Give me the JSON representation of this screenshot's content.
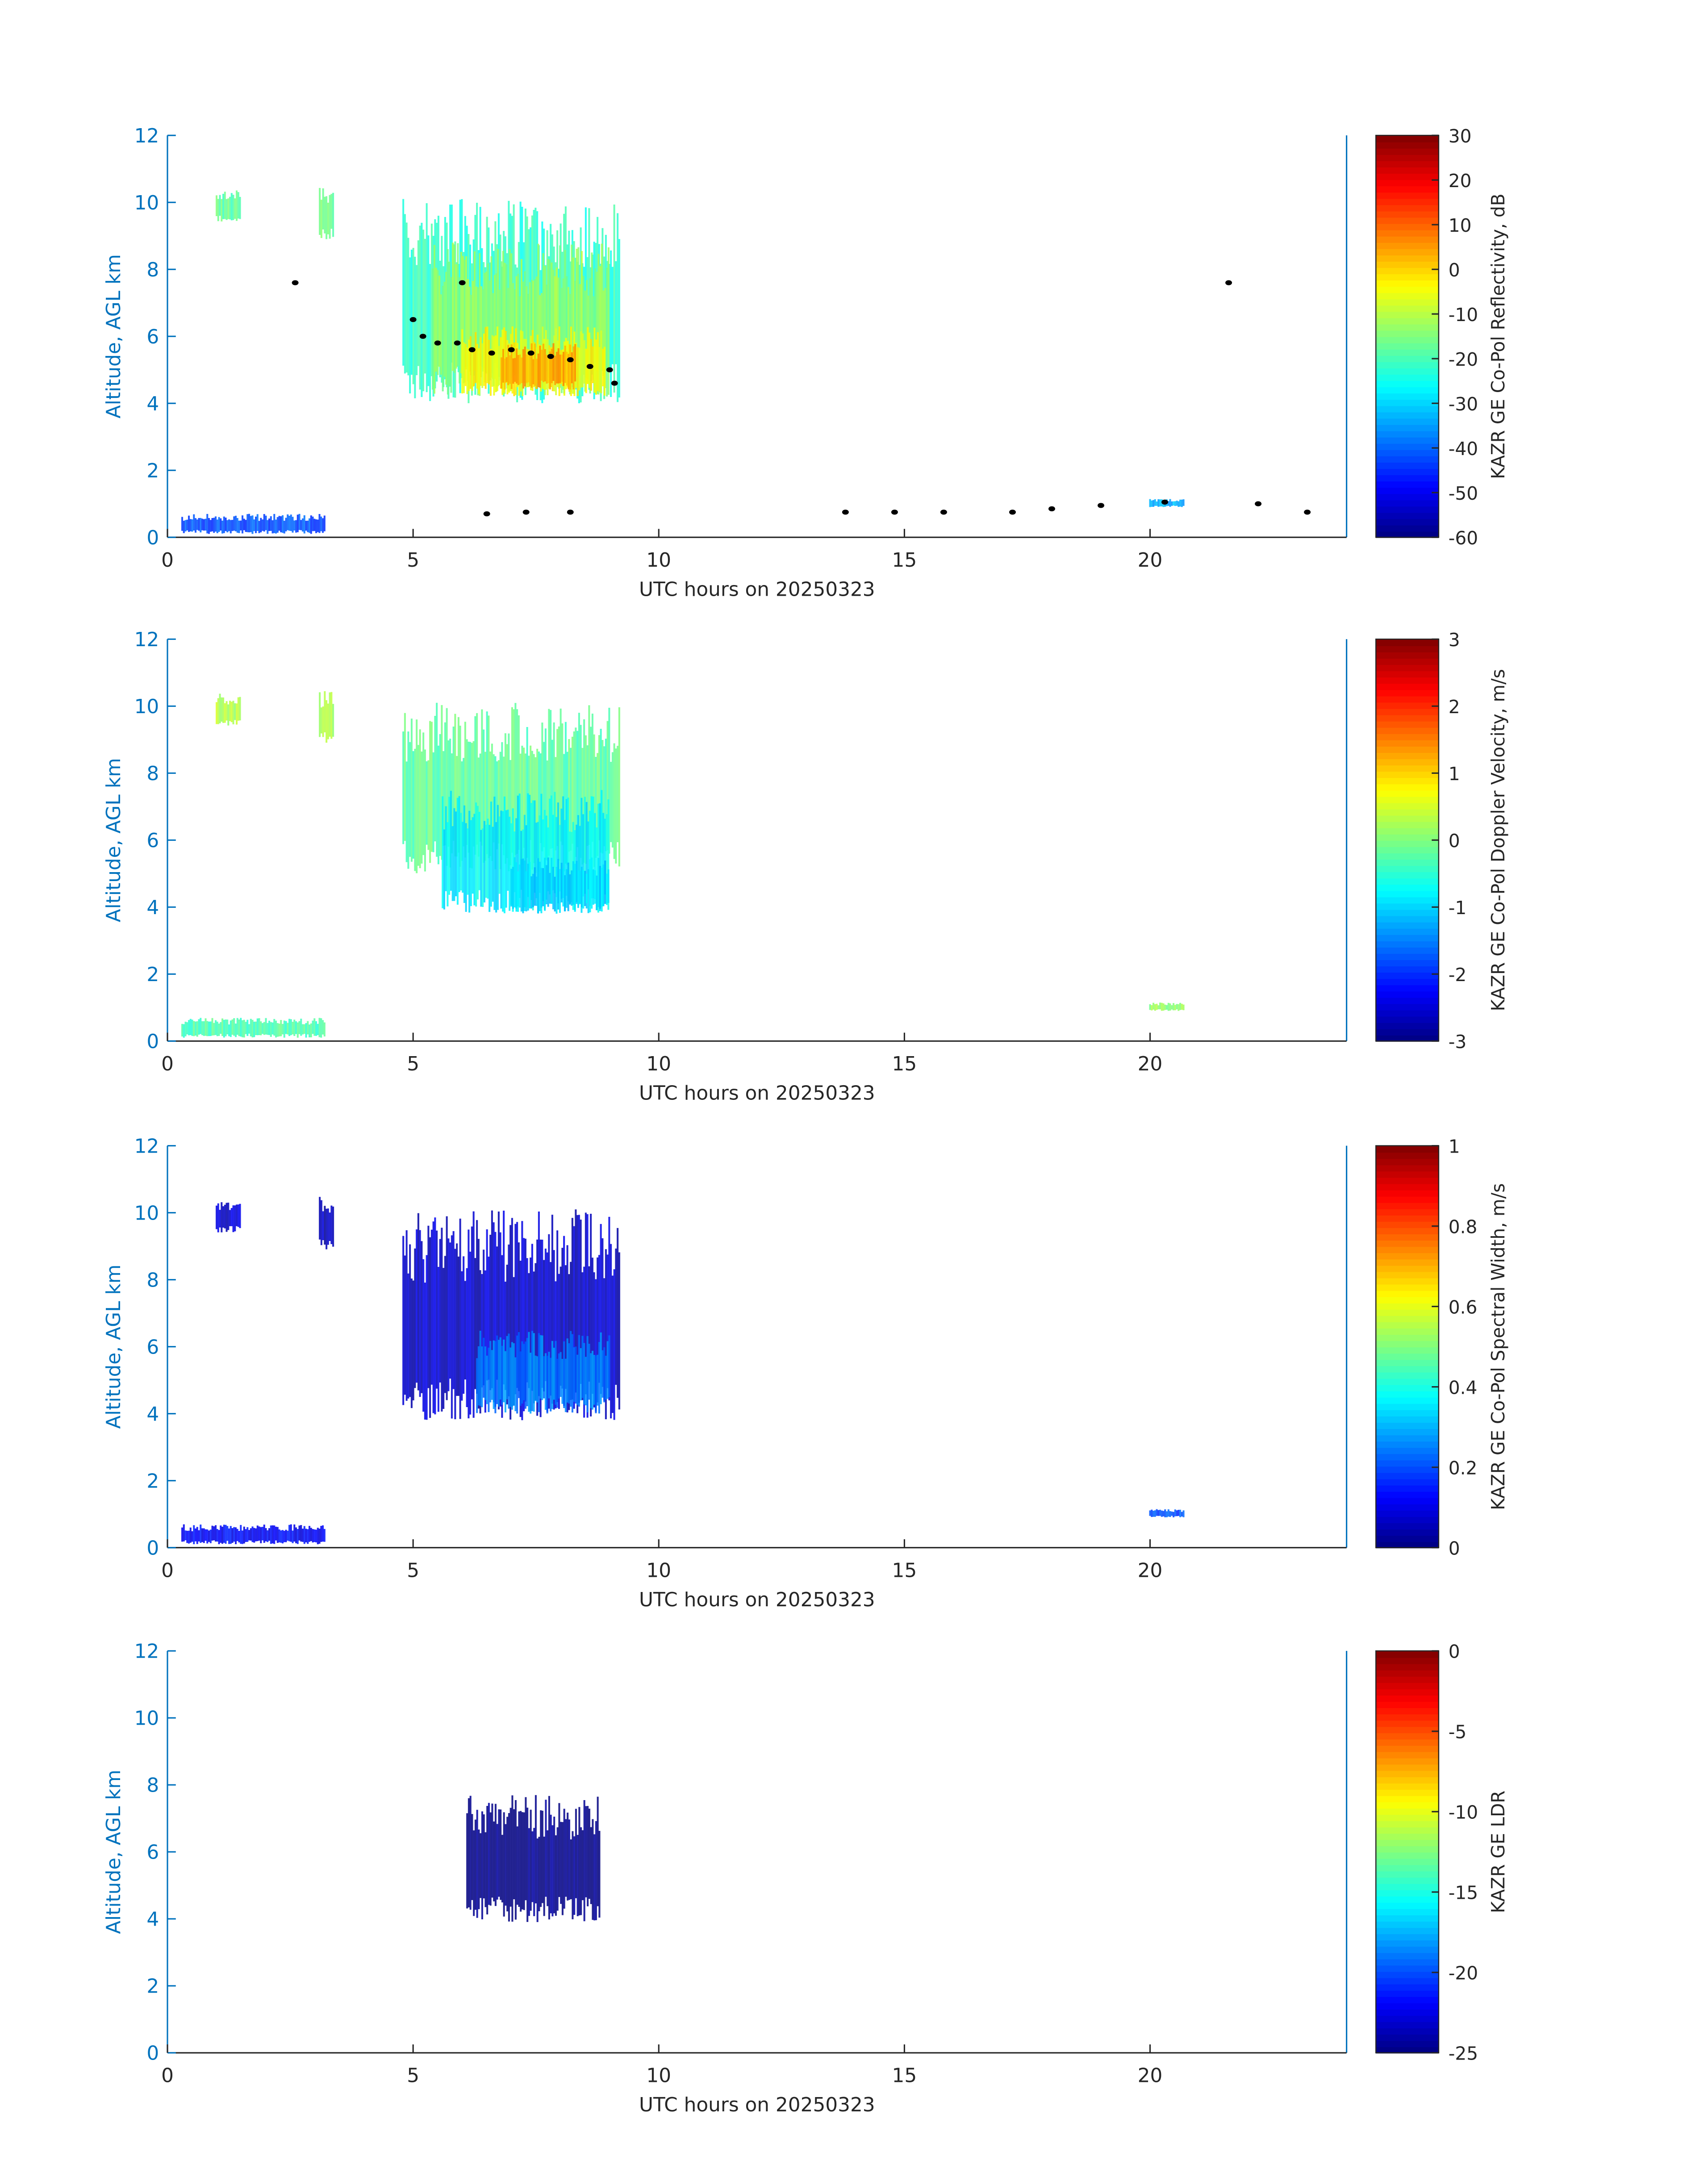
{
  "chart_data": [
    {
      "type": "heatmap",
      "xlabel": "UTC hours on 20250323",
      "ylabel": "Altitude, AGL km",
      "xlim": [
        0,
        24
      ],
      "ylim": [
        0,
        12
      ],
      "xticks": [
        "0",
        "5",
        "10",
        "15",
        "20"
      ],
      "yticks": [
        "0",
        "2",
        "4",
        "6",
        "8",
        "10",
        "12"
      ],
      "colorbar": {
        "label": "KAZR GE Co-Pol Reflectivity, dB",
        "range": [
          -60,
          30
        ],
        "ticks": [
          "30",
          "20",
          "10",
          "0",
          "-10",
          "-20",
          "-30",
          "-40",
          "-50",
          "-60"
        ]
      },
      "regions": [
        {
          "t": [
            4.8,
            9.2
          ],
          "z": [
            4.0,
            10.1
          ],
          "value": -22
        },
        {
          "t": [
            5.4,
            9.0
          ],
          "z": [
            4.2,
            8.8
          ],
          "value": -13
        },
        {
          "t": [
            6.0,
            8.9
          ],
          "z": [
            4.2,
            6.3
          ],
          "value": -4
        },
        {
          "t": [
            6.8,
            8.3
          ],
          "z": [
            4.4,
            5.8
          ],
          "value": 4
        },
        {
          "t": [
            1.0,
            1.5
          ],
          "z": [
            9.4,
            10.4
          ],
          "value": -18
        },
        {
          "t": [
            3.1,
            3.4
          ],
          "z": [
            8.9,
            10.5
          ],
          "value": -16
        },
        {
          "t": [
            0.3,
            3.2
          ],
          "z": [
            0.1,
            0.7
          ],
          "value": -42
        },
        {
          "t": [
            20.0,
            20.7
          ],
          "z": [
            0.9,
            1.15
          ],
          "value": -33
        }
      ],
      "bright_band_points": [
        [
          2.6,
          7.6
        ],
        [
          6.0,
          7.6
        ],
        [
          21.6,
          7.6
        ],
        [
          5.0,
          6.5
        ],
        [
          5.2,
          6.0
        ],
        [
          5.5,
          5.8
        ],
        [
          5.9,
          5.8
        ],
        [
          6.2,
          5.6
        ],
        [
          6.6,
          5.5
        ],
        [
          7.0,
          5.6
        ],
        [
          7.4,
          5.5
        ],
        [
          7.8,
          5.4
        ],
        [
          8.2,
          5.3
        ],
        [
          8.6,
          5.1
        ],
        [
          9.0,
          5.0
        ],
        [
          9.1,
          4.6
        ],
        [
          6.5,
          0.7
        ],
        [
          7.3,
          0.75
        ],
        [
          8.2,
          0.75
        ],
        [
          13.8,
          0.75
        ],
        [
          14.8,
          0.75
        ],
        [
          15.8,
          0.75
        ],
        [
          17.2,
          0.75
        ],
        [
          18.0,
          0.85
        ],
        [
          19.0,
          0.95
        ],
        [
          20.3,
          1.05
        ],
        [
          22.2,
          1.0
        ],
        [
          23.2,
          0.75
        ]
      ]
    },
    {
      "type": "heatmap",
      "xlabel": "UTC hours on 20250323",
      "ylabel": "Altitude, AGL km",
      "xlim": [
        0,
        24
      ],
      "ylim": [
        0,
        12
      ],
      "xticks": [
        "0",
        "5",
        "10",
        "15",
        "20"
      ],
      "yticks": [
        "0",
        "2",
        "4",
        "6",
        "8",
        "10",
        "12"
      ],
      "colorbar": {
        "label": "KAZR GE Co-Pol Doppler Velocity, m/s",
        "range": [
          -3,
          3
        ],
        "ticks": [
          "3",
          "2",
          "1",
          "0",
          "-1",
          "-2",
          "-3"
        ]
      },
      "regions": [
        {
          "t": [
            4.8,
            9.2
          ],
          "z": [
            5.0,
            10.1
          ],
          "value": -0.2
        },
        {
          "t": [
            5.6,
            9.0
          ],
          "z": [
            3.8,
            7.5
          ],
          "value": -0.8
        },
        {
          "t": [
            7.0,
            9.0
          ],
          "z": [
            3.8,
            5.5
          ],
          "value": -1.0
        },
        {
          "t": [
            1.0,
            1.5
          ],
          "z": [
            9.4,
            10.4
          ],
          "value": 0.3
        },
        {
          "t": [
            3.1,
            3.4
          ],
          "z": [
            8.9,
            10.5
          ],
          "value": 0.2
        },
        {
          "t": [
            0.3,
            3.2
          ],
          "z": [
            0.1,
            0.7
          ],
          "value": -0.3
        },
        {
          "t": [
            20.0,
            20.7
          ],
          "z": [
            0.9,
            1.15
          ],
          "value": 0.1
        }
      ]
    },
    {
      "type": "heatmap",
      "xlabel": "UTC hours on 20250323",
      "ylabel": "Altitude, AGL km",
      "xlim": [
        0,
        24
      ],
      "ylim": [
        0,
        12
      ],
      "xticks": [
        "0",
        "5",
        "10",
        "15",
        "20"
      ],
      "yticks": [
        "0",
        "2",
        "4",
        "6",
        "8",
        "10",
        "12"
      ],
      "colorbar": {
        "label": "KAZR GE Co-Pol Spectral Width, m/s",
        "range": [
          0,
          1
        ],
        "ticks": [
          "1",
          "0.8",
          "0.6",
          "0.4",
          "0.2",
          "0"
        ]
      },
      "regions": [
        {
          "t": [
            4.8,
            9.2
          ],
          "z": [
            3.8,
            10.1
          ],
          "value": 0.07
        },
        {
          "t": [
            6.3,
            9.0
          ],
          "z": [
            4.0,
            6.5
          ],
          "value": 0.25
        },
        {
          "t": [
            1.0,
            1.5
          ],
          "z": [
            9.4,
            10.4
          ],
          "value": 0.08
        },
        {
          "t": [
            3.1,
            3.4
          ],
          "z": [
            8.9,
            10.5
          ],
          "value": 0.06
        },
        {
          "t": [
            0.3,
            3.2
          ],
          "z": [
            0.1,
            0.7
          ],
          "value": 0.12
        },
        {
          "t": [
            20.0,
            20.7
          ],
          "z": [
            0.9,
            1.15
          ],
          "value": 0.2
        }
      ]
    },
    {
      "type": "heatmap",
      "xlabel": "UTC hours on 20250323",
      "ylabel": "Altitude, AGL km",
      "xlim": [
        0,
        24
      ],
      "ylim": [
        0,
        12
      ],
      "xticks": [
        "0",
        "5",
        "10",
        "15",
        "20"
      ],
      "yticks": [
        "0",
        "2",
        "4",
        "6",
        "8",
        "10",
        "12"
      ],
      "colorbar": {
        "label": "KAZR GE LDR",
        "range": [
          -25,
          0
        ],
        "ticks": [
          "0",
          "-5",
          "-10",
          "-15",
          "-20",
          "-25"
        ]
      },
      "regions": [
        {
          "t": [
            6.1,
            8.8
          ],
          "z": [
            3.9,
            7.7
          ],
          "value": -25
        }
      ]
    }
  ]
}
